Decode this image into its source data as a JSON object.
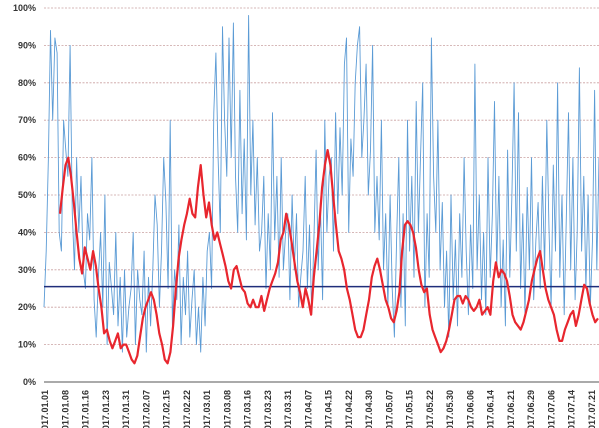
{
  "chart_data": {
    "type": "line",
    "title": "",
    "xlabel": "",
    "ylabel": "",
    "ylim": [
      0,
      100
    ],
    "y_tick_labels": [
      "0%",
      "10%",
      "20%",
      "30%",
      "40%",
      "50%",
      "60%",
      "70%",
      "80%",
      "90%",
      "100%"
    ],
    "x_tick_labels": [
      "2017.01.01",
      "2017.01.08",
      "2017.01.16",
      "2017.01.23",
      "2017.01.31",
      "2017.02.07",
      "2017.02.15",
      "2017.02.22",
      "2017.03.01",
      "2017.03.08",
      "2017.03.16",
      "2017.03.23",
      "2017.03.31",
      "2017.04.07",
      "2017.04.15",
      "2017.04.22",
      "2017.04.30",
      "2017.05.07",
      "2017.05.15",
      "2017.05.22",
      "2017.05.30",
      "2017.06.06",
      "2017.06.14",
      "2017.06.21",
      "2017.06.29",
      "2017.07.06",
      "2017.07.14",
      "2017.07.21"
    ],
    "grid": true,
    "colors": {
      "raw": "#5b9bd5",
      "smoothed": "#e8262e",
      "average": "#1f2d7a",
      "grid": "#c9a0a0"
    },
    "series": [
      {
        "role": "raw",
        "values": [
          20,
          35,
          60,
          94,
          70,
          92,
          88,
          40,
          35,
          70,
          62,
          55,
          90,
          45,
          30,
          60,
          40,
          55,
          30,
          25,
          45,
          38,
          60,
          22,
          12,
          28,
          40,
          20,
          50,
          10,
          32,
          25,
          18,
          40,
          15,
          28,
          8,
          30,
          12,
          20,
          25,
          40,
          10,
          30,
          22,
          18,
          35,
          8,
          28,
          15,
          30,
          50,
          42,
          20,
          35,
          60,
          48,
          25,
          70,
          15,
          30,
          22,
          42,
          10,
          28,
          18,
          35,
          12,
          22,
          30,
          10,
          20,
          8,
          28,
          15,
          35,
          40,
          25,
          72,
          88,
          60,
          40,
          95,
          70,
          55,
          92,
          60,
          96,
          55,
          40,
          78,
          45,
          65,
          38,
          98,
          50,
          70,
          42,
          60,
          35,
          40,
          55,
          25,
          45,
          30,
          72,
          38,
          55,
          28,
          60,
          30,
          40,
          45,
          22,
          50,
          30,
          45,
          20,
          28,
          35,
          55,
          25,
          42,
          18,
          38,
          62,
          30,
          48,
          22,
          70,
          40,
          55,
          60,
          35,
          72,
          45,
          68,
          50,
          85,
          92,
          40,
          65,
          55,
          80,
          90,
          95,
          60,
          70,
          85,
          50,
          62,
          90,
          40,
          55,
          38,
          70,
          30,
          45,
          20,
          50,
          25,
          12,
          38,
          60,
          20,
          45,
          15,
          70,
          35,
          55,
          28,
          75,
          40,
          60,
          80,
          20,
          45,
          28,
          92,
          55,
          40,
          70,
          30,
          48,
          20,
          35,
          12,
          50,
          22,
          38,
          15,
          45,
          28,
          60,
          35,
          18,
          42,
          25,
          85,
          30,
          50,
          22,
          40,
          18,
          60,
          28,
          45,
          75,
          30,
          55,
          20,
          38,
          15,
          62,
          28,
          50,
          80,
          35,
          72,
          25,
          45,
          18,
          52,
          30,
          60,
          22,
          38,
          48,
          25,
          55,
          30,
          70,
          42,
          20,
          58,
          35,
          80,
          28,
          50,
          18,
          45,
          72,
          30,
          60,
          22,
          40,
          84,
          35,
          55,
          25,
          50,
          20,
          38,
          78,
          30,
          60
        ]
      },
      {
        "role": "smoothed",
        "values": [
          45,
          52,
          58,
          60,
          55,
          48,
          40,
          33,
          29,
          36,
          33,
          30,
          35,
          31,
          25,
          20,
          13,
          14,
          11,
          9,
          11,
          13,
          9,
          10,
          10,
          8,
          6,
          5,
          7,
          12,
          17,
          20,
          22,
          24,
          22,
          18,
          13,
          10,
          6,
          5,
          8,
          15,
          25,
          33,
          38,
          42,
          45,
          49,
          45,
          44,
          52,
          58,
          50,
          44,
          48,
          42,
          38,
          40,
          37,
          34,
          31,
          27,
          25,
          30,
          31,
          28,
          25,
          24,
          21,
          20,
          22,
          20,
          20,
          23,
          19,
          22,
          25,
          27,
          29,
          32,
          38,
          40,
          45,
          42,
          37,
          32,
          27,
          24,
          20,
          25,
          22,
          18,
          28,
          35,
          42,
          52,
          58,
          62,
          58,
          50,
          42,
          35,
          33,
          30,
          25,
          22,
          18,
          14,
          12,
          12,
          14,
          18,
          22,
          28,
          31,
          33,
          30,
          26,
          22,
          20,
          17,
          16,
          19,
          24,
          35,
          42,
          43,
          42,
          40,
          36,
          30,
          26,
          24,
          25,
          18,
          14,
          12,
          10,
          8,
          9,
          11,
          14,
          18,
          22,
          23,
          23,
          21,
          23,
          22,
          20,
          19,
          20,
          22,
          18,
          19,
          20,
          18,
          27,
          32,
          28,
          30,
          29,
          27,
          23,
          18,
          16,
          15,
          14,
          16,
          19,
          22,
          27,
          30,
          33,
          35,
          30,
          25,
          22,
          20,
          18,
          14,
          11,
          11,
          14,
          16,
          18,
          19,
          15,
          18,
          22,
          26,
          25,
          21,
          18,
          16,
          17
        ],
        "_note": "Per-day moving average"
      },
      {
        "role": "average",
        "values": [
          25.5
        ]
      }
    ]
  }
}
